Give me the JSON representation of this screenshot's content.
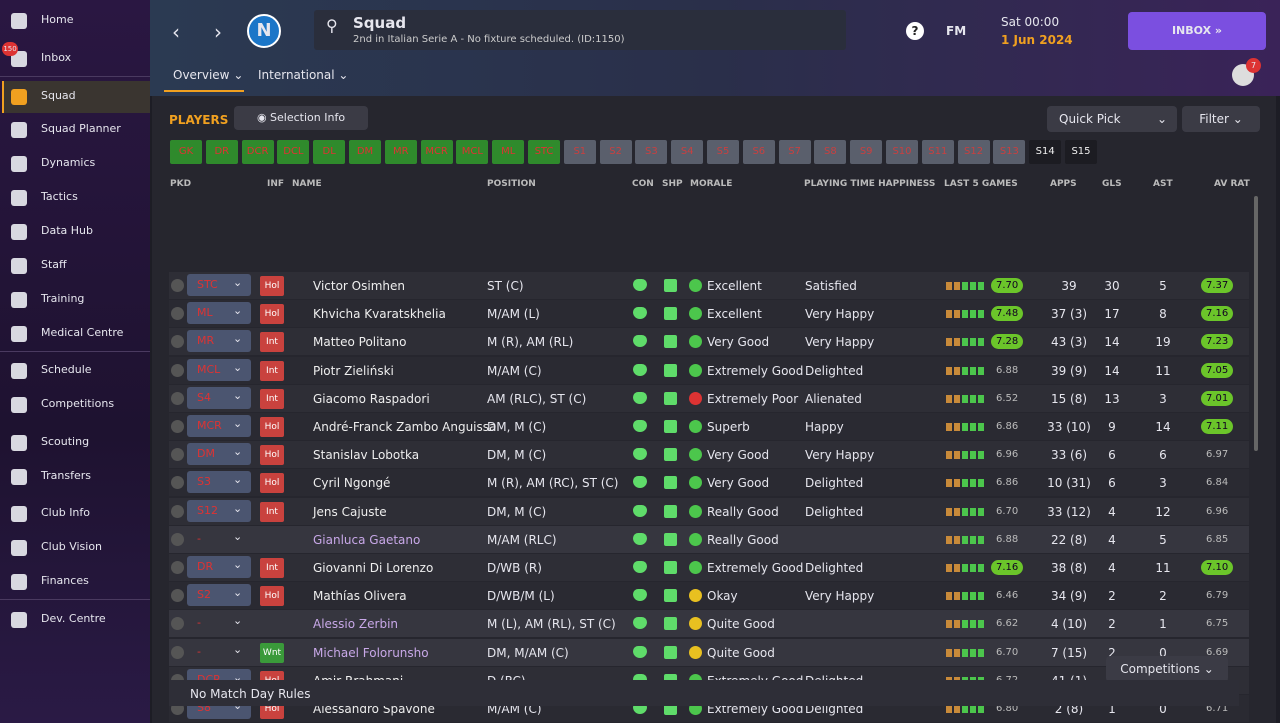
{
  "sidebar": {
    "items": [
      "Home",
      "Inbox",
      "Squad",
      "Squad Planner",
      "Dynamics",
      "Tactics",
      "Data Hub",
      "Staff",
      "Training",
      "Medical Centre",
      "Schedule",
      "Competitions",
      "Scouting",
      "Transfers",
      "Club Info",
      "Club Vision",
      "Finances",
      "Dev. Centre"
    ],
    "inbox_badge": "150"
  },
  "header": {
    "club_letter": "N",
    "title": "Squad",
    "subtitle": "2nd in Italian Serie A - No fixture scheduled. (ID:1150)",
    "fm": "FM",
    "time": "Sat 00:00",
    "date": "1 Jun 2024",
    "inbox": "INBOX",
    "badge": "7",
    "tabs": [
      "Overview",
      "International"
    ]
  },
  "toolbar": {
    "players": "PLAYERS",
    "selection_info": "Selection Info",
    "quick_pick": "Quick Pick",
    "filter": "Filter"
  },
  "positions": [
    "GK",
    "DR",
    "DCR",
    "DCL",
    "DL",
    "DM",
    "MR",
    "MCR",
    "MCL",
    "ML",
    "STC",
    "S1",
    "S2",
    "S3",
    "S4",
    "S5",
    "S6",
    "S7",
    "S8",
    "S9",
    "S10",
    "S11",
    "S12",
    "S13",
    "S14",
    "S15"
  ],
  "table": {
    "columns": [
      "PKD",
      "INF",
      "NAME",
      "POSITION",
      "CON",
      "SHP",
      "MORALE",
      "PLAYING TIME HAPPINESS",
      "LAST 5 GAMES",
      "APPS",
      "GLS",
      "AST",
      "AV RAT"
    ],
    "rows": [
      {
        "pkd": "STC",
        "inf": "Hol",
        "name": "Victor Osimhen",
        "position": "ST (C)",
        "morale": "Excellent",
        "happiness": "Satisfied",
        "last5": "7.70",
        "apps": "39",
        "gls": "30",
        "ast": "5",
        "avrat": "7.37"
      },
      {
        "pkd": "ML",
        "inf": "Hol",
        "name": "Khvicha Kvaratskhelia",
        "position": "M/AM (L)",
        "morale": "Excellent",
        "happiness": "Very Happy",
        "last5": "7.48",
        "apps": "37 (3)",
        "gls": "17",
        "ast": "8",
        "avrat": "7.16"
      },
      {
        "pkd": "MR",
        "inf": "Int",
        "name": "Matteo Politano",
        "position": "M (R), AM (RL)",
        "morale": "Very Good",
        "happiness": "Very Happy",
        "last5": "7.28",
        "apps": "43 (3)",
        "gls": "14",
        "ast": "19",
        "avrat": "7.23"
      },
      {
        "pkd": "MCL",
        "inf": "Int",
        "name": "Piotr Zieliński",
        "position": "M/AM (C)",
        "morale": "Extremely Good",
        "happiness": "Delighted",
        "last5": "6.88",
        "apps": "39 (9)",
        "gls": "14",
        "ast": "11",
        "avrat": "7.05"
      },
      {
        "pkd": "S4",
        "inf": "Int",
        "name": "Giacomo Raspadori",
        "position": "AM (RLC), ST (C)",
        "morale": "Extremely Poor",
        "happiness": "Alienated",
        "last5": "6.52",
        "apps": "15 (8)",
        "gls": "13",
        "ast": "3",
        "avrat": "7.01"
      },
      {
        "pkd": "MCR",
        "inf": "Hol",
        "name": "André-Franck Zambo Anguissa",
        "position": "DM, M (C)",
        "morale": "Superb",
        "happiness": "Happy",
        "last5": "6.86",
        "apps": "33 (10)",
        "gls": "9",
        "ast": "14",
        "avrat": "7.11"
      },
      {
        "pkd": "DM",
        "inf": "Hol",
        "name": "Stanislav Lobotka",
        "position": "DM, M (C)",
        "morale": "Very Good",
        "happiness": "Very Happy",
        "last5": "6.96",
        "apps": "33 (6)",
        "gls": "6",
        "ast": "6",
        "avrat": "6.97"
      },
      {
        "pkd": "S3",
        "inf": "Hol",
        "name": "Cyril Ngongé",
        "position": "M (R), AM (RC), ST (C)",
        "morale": "Very Good",
        "happiness": "Delighted",
        "last5": "6.86",
        "apps": "10 (31)",
        "gls": "6",
        "ast": "3",
        "avrat": "6.84"
      },
      {
        "pkd": "S12",
        "inf": "Int",
        "name": "Jens Cajuste",
        "position": "DM, M (C)",
        "morale": "Really Good",
        "happiness": "Delighted",
        "last5": "6.70",
        "apps": "33 (12)",
        "gls": "4",
        "ast": "12",
        "avrat": "6.96"
      },
      {
        "pkd": "-",
        "name": "Gianluca Gaetano",
        "position": "M/AM (RLC)",
        "morale": "Really Good",
        "last5": "6.88",
        "apps": "22 (8)",
        "gls": "4",
        "ast": "5",
        "avrat": "6.85"
      },
      {
        "pkd": "DR",
        "inf": "Int",
        "name": "Giovanni Di Lorenzo",
        "position": "D/WB (R)",
        "morale": "Extremely Good",
        "happiness": "Delighted",
        "last5": "7.16",
        "apps": "38 (8)",
        "gls": "4",
        "ast": "11",
        "avrat": "7.10"
      },
      {
        "pkd": "S2",
        "inf": "Hol",
        "name": "Mathías Olivera",
        "position": "D/WB/M (L)",
        "morale": "Okay",
        "happiness": "Very Happy",
        "last5": "6.46",
        "apps": "34 (9)",
        "gls": "2",
        "ast": "2",
        "avrat": "6.79"
      },
      {
        "pkd": "-",
        "name": "Alessio Zerbin",
        "position": "M (L), AM (RL), ST (C)",
        "morale": "Quite Good",
        "last5": "6.62",
        "apps": "4 (10)",
        "gls": "2",
        "ast": "1",
        "avrat": "6.75"
      },
      {
        "pkd": "-",
        "inf": "Wnt",
        "name": "Michael Folorunsho",
        "position": "DM, M/AM (C)",
        "morale": "Quite Good",
        "last5": "6.70",
        "apps": "7 (15)",
        "gls": "2",
        "ast": "0",
        "avrat": "6.69"
      },
      {
        "pkd": "DCR",
        "inf": "Hol",
        "name": "Amir Rrahmani",
        "position": "D (RC)",
        "morale": "Extremely Good",
        "happiness": "Delighted",
        "last5": "6.72",
        "apps": "41 (1)",
        "gls": "2",
        "ast": "1",
        "avrat": "6.86"
      },
      {
        "pkd": "S8",
        "inf": "Hol",
        "name": "Alessandro Spavone",
        "position": "M/AM (C)",
        "morale": "Extremely Good",
        "happiness": "Delighted",
        "last5": "6.80",
        "apps": "2 (8)",
        "gls": "1",
        "ast": "0",
        "avrat": "6.71"
      }
    ]
  },
  "footer": {
    "competitions": "Competitions",
    "rules": "No Match Day Rules"
  }
}
